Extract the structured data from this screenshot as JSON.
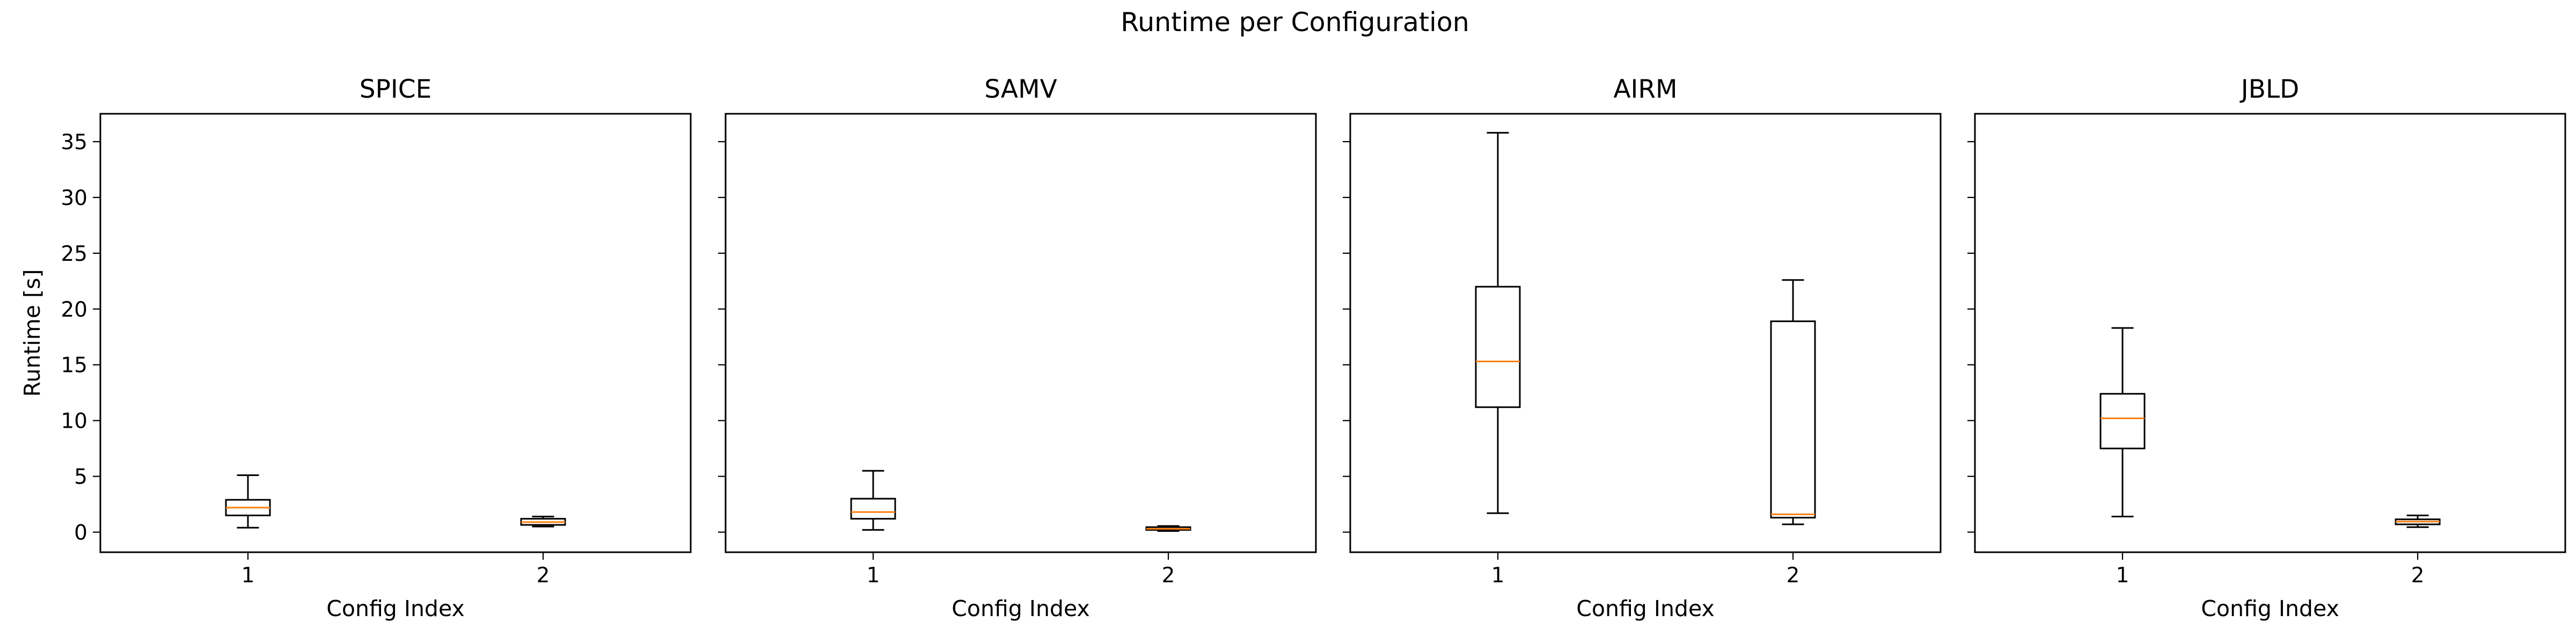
{
  "figure": {
    "title": "Runtime per Configuration",
    "ylabel": "Runtime [s]",
    "xlabel": "Config Index"
  },
  "chart_data": {
    "type": "box",
    "title": "Runtime per Configuration",
    "ylabel": "Runtime [s]",
    "xlabel": "Config Index",
    "ylim": [
      -1.8,
      37.5
    ],
    "yticks": [
      0,
      5,
      10,
      15,
      20,
      25,
      30,
      35
    ],
    "categories": [
      "1",
      "2"
    ],
    "colors": {
      "median": "#ff7f0e",
      "box": "#000000"
    },
    "panels": [
      {
        "title": "SPICE",
        "boxes": [
          {
            "category": "1",
            "whislo": 0.4,
            "q1": 1.5,
            "med": 2.2,
            "q3": 2.9,
            "whishi": 5.1
          },
          {
            "category": "2",
            "whislo": 0.5,
            "q1": 0.65,
            "med": 0.9,
            "q3": 1.2,
            "whishi": 1.4
          }
        ]
      },
      {
        "title": "SAMV",
        "boxes": [
          {
            "category": "1",
            "whislo": 0.2,
            "q1": 1.2,
            "med": 1.8,
            "q3": 3.0,
            "whishi": 5.5
          },
          {
            "category": "2",
            "whislo": 0.1,
            "q1": 0.2,
            "med": 0.3,
            "q3": 0.45,
            "whishi": 0.55
          }
        ]
      },
      {
        "title": "AIRM",
        "boxes": [
          {
            "category": "1",
            "whislo": 1.7,
            "q1": 11.2,
            "med": 15.3,
            "q3": 22.0,
            "whishi": 35.8
          },
          {
            "category": "2",
            "whislo": 0.7,
            "q1": 1.3,
            "med": 1.6,
            "q3": 18.9,
            "whishi": 22.6
          }
        ]
      },
      {
        "title": "JBLD",
        "boxes": [
          {
            "category": "1",
            "whislo": 1.4,
            "q1": 7.5,
            "med": 10.2,
            "q3": 12.4,
            "whishi": 18.3
          },
          {
            "category": "2",
            "whislo": 0.45,
            "q1": 0.7,
            "med": 0.95,
            "q3": 1.15,
            "whishi": 1.5
          }
        ]
      }
    ]
  }
}
